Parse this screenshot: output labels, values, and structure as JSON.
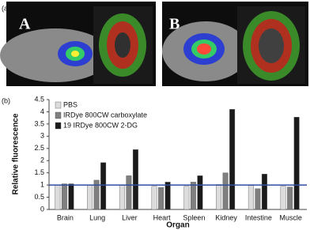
{
  "panel_labels": {
    "a": "(a)",
    "b": "(b)",
    "image_a": "A",
    "image_b": "B"
  },
  "chart_data": {
    "type": "bar",
    "y_label": "Relative fluorescence",
    "x_label": "Organ",
    "categories": [
      "Brain",
      "Lung",
      "Liver",
      "Heart",
      "Spleen",
      "Kidney",
      "Intestine",
      "Muscle"
    ],
    "series": [
      {
        "name": "PBS",
        "color": "#dcdcdc",
        "values": [
          1.0,
          1.0,
          1.0,
          0.95,
          0.95,
          1.02,
          0.98,
          0.95
        ]
      },
      {
        "name": "IRDye 800CW carboxylate",
        "color": "#7f7f7f",
        "values": [
          1.05,
          1.2,
          1.38,
          0.9,
          1.12,
          1.5,
          0.85,
          0.92
        ]
      },
      {
        "name": "19 IRDye 800CW 2-DG",
        "color": "#1a1a1a",
        "values": [
          1.05,
          1.92,
          2.45,
          1.12,
          1.38,
          4.1,
          1.45,
          3.78
        ]
      }
    ],
    "ylim": [
      0,
      4.5
    ],
    "yticks": [
      0,
      0.5,
      1,
      1.5,
      2,
      2.5,
      3,
      3.5,
      4,
      4.5
    ],
    "reference_line": 1,
    "reference_color": "#2f4f9f",
    "legend": "upper left"
  }
}
